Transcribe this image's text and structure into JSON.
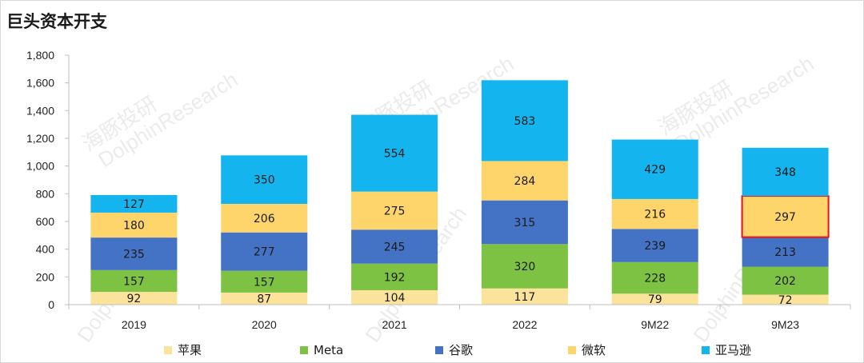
{
  "chart_data": {
    "type": "bar",
    "stacked": true,
    "title": "巨头资本开支",
    "categories": [
      "2019",
      "2020",
      "2021",
      "2022",
      "9M22",
      "9M23"
    ],
    "series": [
      {
        "name": "苹果",
        "color": "#fbe39b",
        "values": [
          92,
          87,
          104,
          117,
          79,
          72
        ]
      },
      {
        "name": "Meta",
        "color": "#7dc242",
        "values": [
          157,
          157,
          192,
          320,
          228,
          202
        ]
      },
      {
        "name": "谷歌",
        "color": "#4472c4",
        "values": [
          235,
          277,
          245,
          315,
          239,
          213
        ]
      },
      {
        "name": "微软",
        "color": "#fdd56b",
        "values": [
          180,
          206,
          275,
          284,
          216,
          297
        ]
      },
      {
        "name": "亚马逊",
        "color": "#14b4ee",
        "values": [
          127,
          350,
          554,
          583,
          429,
          348
        ]
      }
    ],
    "ylim": [
      0,
      1800
    ],
    "yticks": [
      "0",
      "200",
      "400",
      "600",
      "800",
      "1,000",
      "1,200",
      "1,400",
      "1,600",
      "1,800"
    ],
    "highlight": {
      "category": "9M23",
      "series": "微软",
      "color": "#e8141b"
    },
    "legend_position": "bottom",
    "grid": false
  },
  "watermark": {
    "cn": "海豚投研",
    "en": "DolphinResearch"
  }
}
